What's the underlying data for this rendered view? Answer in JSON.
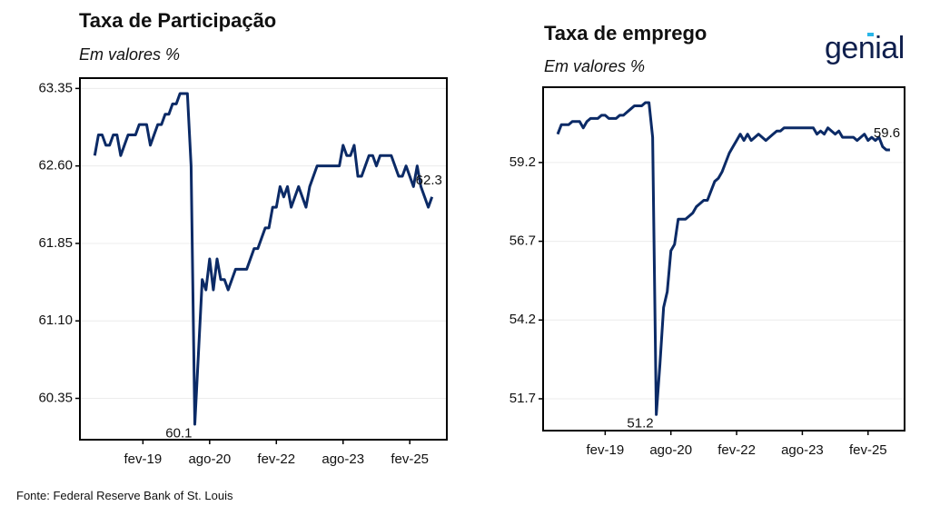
{
  "chart_data": [
    {
      "type": "line",
      "title": "Taxa de Participação",
      "subtitle": "Em valores %",
      "x": [
        "2018-01",
        "2018-02",
        "2018-03",
        "2018-04",
        "2018-05",
        "2018-06",
        "2018-07",
        "2018-08",
        "2018-09",
        "2018-10",
        "2018-11",
        "2018-12",
        "2019-01",
        "2019-02",
        "2019-03",
        "2019-04",
        "2019-05",
        "2019-06",
        "2019-07",
        "2019-08",
        "2019-09",
        "2019-10",
        "2019-11",
        "2019-12",
        "2020-01",
        "2020-02",
        "2020-03",
        "2020-04",
        "2020-05",
        "2020-06",
        "2020-07",
        "2020-08",
        "2020-09",
        "2020-10",
        "2020-11",
        "2020-12",
        "2021-01",
        "2021-02",
        "2021-03",
        "2021-04",
        "2021-05",
        "2021-06",
        "2021-07",
        "2021-08",
        "2021-09",
        "2021-10",
        "2021-11",
        "2021-12",
        "2022-01",
        "2022-02",
        "2022-03",
        "2022-04",
        "2022-05",
        "2022-06",
        "2022-07",
        "2022-08",
        "2022-09",
        "2022-10",
        "2022-11",
        "2022-12",
        "2023-01",
        "2023-02",
        "2023-03",
        "2023-04",
        "2023-05",
        "2023-06",
        "2023-07",
        "2023-08",
        "2023-09",
        "2023-10",
        "2023-11",
        "2023-12",
        "2024-01",
        "2024-02",
        "2024-03",
        "2024-04",
        "2024-05",
        "2024-06",
        "2024-07",
        "2024-08",
        "2024-09",
        "2024-10",
        "2024-11",
        "2024-12",
        "2025-01",
        "2025-02",
        "2025-03",
        "2025-04",
        "2025-05",
        "2025-06",
        "2025-07",
        "2025-08"
      ],
      "series": [
        {
          "name": "Taxa de Participação",
          "color": "#0b2a66",
          "values": [
            62.7,
            62.9,
            62.9,
            62.8,
            62.8,
            62.9,
            62.9,
            62.7,
            62.8,
            62.9,
            62.9,
            62.9,
            63.0,
            63.0,
            63.0,
            62.8,
            62.9,
            63.0,
            63.0,
            63.1,
            63.1,
            63.2,
            63.2,
            63.3,
            63.3,
            63.3,
            62.6,
            60.1,
            60.8,
            61.5,
            61.4,
            61.7,
            61.4,
            61.7,
            61.5,
            61.5,
            61.4,
            61.5,
            61.6,
            61.6,
            61.6,
            61.6,
            61.7,
            61.8,
            61.8,
            61.9,
            62.0,
            62.0,
            62.2,
            62.2,
            62.4,
            62.3,
            62.4,
            62.2,
            62.3,
            62.4,
            62.3,
            62.2,
            62.4,
            62.5,
            62.6,
            62.6,
            62.6,
            62.6,
            62.6,
            62.6,
            62.6,
            62.8,
            62.7,
            62.7,
            62.8,
            62.5,
            62.5,
            62.6,
            62.7,
            62.7,
            62.6,
            62.7,
            62.7,
            62.7,
            62.7,
            62.6,
            62.5,
            62.5,
            62.6,
            62.5,
            62.4,
            62.6,
            62.4,
            62.3,
            62.2,
            62.3
          ]
        }
      ],
      "xlim": [
        "2017-09",
        "2025-12"
      ],
      "xticks": [
        {
          "value": "2019-02",
          "label": "fev-19"
        },
        {
          "value": "2020-08",
          "label": "ago-20"
        },
        {
          "value": "2022-02",
          "label": "fev-22"
        },
        {
          "value": "2023-08",
          "label": "ago-23"
        },
        {
          "value": "2025-02",
          "label": "fev-25"
        }
      ],
      "ylim": [
        59.95,
        63.45
      ],
      "yticks": [
        {
          "value": 60.35,
          "label": "60.35"
        },
        {
          "value": 61.1,
          "label": "61.10"
        },
        {
          "value": 61.85,
          "label": "61.85"
        },
        {
          "value": 62.6,
          "label": "62.60"
        },
        {
          "value": 63.35,
          "label": "63.35"
        }
      ],
      "grid": true,
      "annotations": [
        {
          "text": "60.1",
          "x": "2020-04",
          "y": 60.1
        },
        {
          "text": "62.3",
          "x": "2025-08",
          "y": 62.3
        }
      ]
    },
    {
      "type": "line",
      "title": "Taxa de emprego",
      "subtitle": "Em valores %",
      "x": [
        "2018-01",
        "2018-02",
        "2018-03",
        "2018-04",
        "2018-05",
        "2018-06",
        "2018-07",
        "2018-08",
        "2018-09",
        "2018-10",
        "2018-11",
        "2018-12",
        "2019-01",
        "2019-02",
        "2019-03",
        "2019-04",
        "2019-05",
        "2019-06",
        "2019-07",
        "2019-08",
        "2019-09",
        "2019-10",
        "2019-11",
        "2019-12",
        "2020-01",
        "2020-02",
        "2020-03",
        "2020-04",
        "2020-05",
        "2020-06",
        "2020-07",
        "2020-08",
        "2020-09",
        "2020-10",
        "2020-11",
        "2020-12",
        "2021-01",
        "2021-02",
        "2021-03",
        "2021-04",
        "2021-05",
        "2021-06",
        "2021-07",
        "2021-08",
        "2021-09",
        "2021-10",
        "2021-11",
        "2021-12",
        "2022-01",
        "2022-02",
        "2022-03",
        "2022-04",
        "2022-05",
        "2022-06",
        "2022-07",
        "2022-08",
        "2022-09",
        "2022-10",
        "2022-11",
        "2022-12",
        "2023-01",
        "2023-02",
        "2023-03",
        "2023-04",
        "2023-05",
        "2023-06",
        "2023-07",
        "2023-08",
        "2023-09",
        "2023-10",
        "2023-11",
        "2023-12",
        "2024-01",
        "2024-02",
        "2024-03",
        "2024-04",
        "2024-05",
        "2024-06",
        "2024-07",
        "2024-08",
        "2024-09",
        "2024-10",
        "2024-11",
        "2024-12",
        "2025-01",
        "2025-02",
        "2025-03",
        "2025-04",
        "2025-05",
        "2025-06",
        "2025-07",
        "2025-08"
      ],
      "series": [
        {
          "name": "Taxa de emprego",
          "color": "#0b2a66",
          "values": [
            60.1,
            60.4,
            60.4,
            60.4,
            60.5,
            60.5,
            60.5,
            60.3,
            60.5,
            60.6,
            60.6,
            60.6,
            60.7,
            60.7,
            60.6,
            60.6,
            60.6,
            60.7,
            60.7,
            60.8,
            60.9,
            61.0,
            61.0,
            61.0,
            61.1,
            61.1,
            60.0,
            51.2,
            52.8,
            54.6,
            55.1,
            56.4,
            56.6,
            57.4,
            57.4,
            57.4,
            57.5,
            57.6,
            57.8,
            57.9,
            58.0,
            58.0,
            58.3,
            58.6,
            58.7,
            58.9,
            59.2,
            59.5,
            59.7,
            59.9,
            60.1,
            59.9,
            60.1,
            59.9,
            60.0,
            60.1,
            60.0,
            59.9,
            60.0,
            60.1,
            60.2,
            60.2,
            60.3,
            60.3,
            60.3,
            60.3,
            60.3,
            60.3,
            60.3,
            60.3,
            60.3,
            60.1,
            60.2,
            60.1,
            60.3,
            60.2,
            60.1,
            60.2,
            60.0,
            60.0,
            60.0,
            60.0,
            59.9,
            60.0,
            60.1,
            59.9,
            60.0,
            59.9,
            60.0,
            59.7,
            59.6,
            59.6
          ]
        }
      ],
      "xlim": [
        "2017-09",
        "2025-12"
      ],
      "xticks": [
        {
          "value": "2019-02",
          "label": "fev-19"
        },
        {
          "value": "2020-08",
          "label": "ago-20"
        },
        {
          "value": "2022-02",
          "label": "fev-22"
        },
        {
          "value": "2023-08",
          "label": "ago-23"
        },
        {
          "value": "2025-02",
          "label": "fev-25"
        }
      ],
      "ylim": [
        50.69,
        61.59
      ],
      "yticks": [
        51.7,
        54.2,
        56.7,
        59.2
      ],
      "grid": true,
      "annotations": [
        {
          "text": "51.2",
          "x": "2020-04",
          "y": 51.2
        },
        {
          "text": "59.6",
          "x": "2025-08",
          "y": 59.6
        }
      ]
    }
  ],
  "logo": "genial",
  "source": "Fonte: Federal Reserve Bank of St. Louis"
}
